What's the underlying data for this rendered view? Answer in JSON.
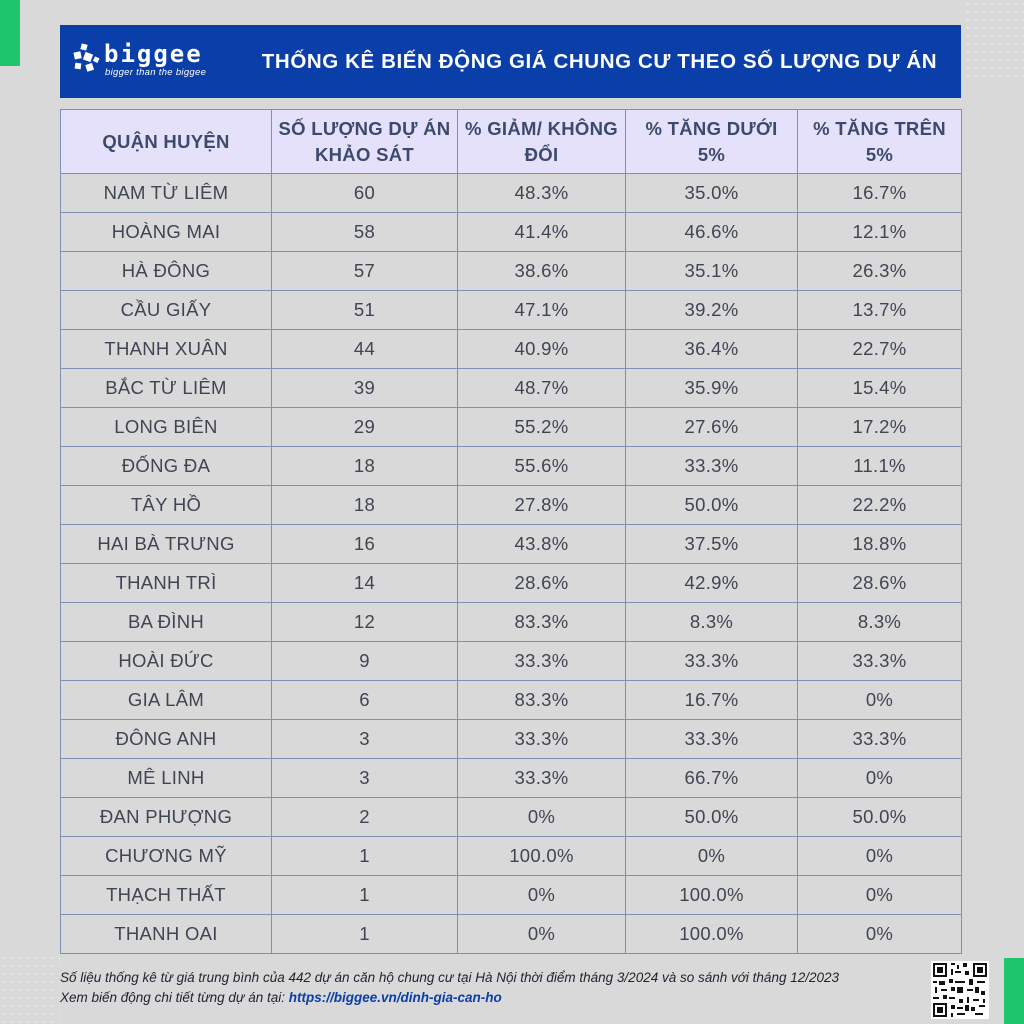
{
  "brand": {
    "name": "biggee",
    "tagline": "bigger than the biggee",
    "logo_icon": "biggee-logo-icon",
    "colors": {
      "header_bg": "#0a3ea8",
      "accent": "#1ec66b",
      "table_header_bg": "#e6e1fa"
    }
  },
  "title": "THỐNG KÊ BIẾN ĐỘNG GIÁ CHUNG CƯ THEO SỐ LƯỢNG DỰ ÁN",
  "table": {
    "headers": [
      "QUẬN HUYỆN",
      "SỐ LƯỢNG DỰ ÁN KHẢO SÁT",
      "% GIẢM/ KHÔNG ĐỔI",
      "% TĂNG DƯỚI 5%",
      "% TĂNG TRÊN 5%"
    ],
    "rows": [
      [
        "NAM TỪ LIÊM",
        "60",
        "48.3%",
        "35.0%",
        "16.7%"
      ],
      [
        "HOÀNG MAI",
        "58",
        "41.4%",
        "46.6%",
        "12.1%"
      ],
      [
        "HÀ ĐÔNG",
        "57",
        "38.6%",
        "35.1%",
        "26.3%"
      ],
      [
        "CẦU GIẤY",
        "51",
        "47.1%",
        "39.2%",
        "13.7%"
      ],
      [
        "THANH XUÂN",
        "44",
        "40.9%",
        "36.4%",
        "22.7%"
      ],
      [
        "BẮC TỪ LIÊM",
        "39",
        "48.7%",
        "35.9%",
        "15.4%"
      ],
      [
        "LONG BIÊN",
        "29",
        "55.2%",
        "27.6%",
        "17.2%"
      ],
      [
        "ĐỐNG ĐA",
        "18",
        "55.6%",
        "33.3%",
        "11.1%"
      ],
      [
        "TÂY HỒ",
        "18",
        "27.8%",
        "50.0%",
        "22.2%"
      ],
      [
        "HAI BÀ TRƯNG",
        "16",
        "43.8%",
        "37.5%",
        "18.8%"
      ],
      [
        "THANH TRÌ",
        "14",
        "28.6%",
        "42.9%",
        "28.6%"
      ],
      [
        "BA ĐÌNH",
        "12",
        "83.3%",
        "8.3%",
        "8.3%"
      ],
      [
        "HOÀI ĐỨC",
        "9",
        "33.3%",
        "33.3%",
        "33.3%"
      ],
      [
        "GIA LÂM",
        "6",
        "83.3%",
        "16.7%",
        "0%"
      ],
      [
        "ĐÔNG  ANH",
        "3",
        "33.3%",
        "33.3%",
        "33.3%"
      ],
      [
        "MÊ LINH",
        "3",
        "33.3%",
        "66.7%",
        "0%"
      ],
      [
        "ĐAN PHƯỢNG",
        "2",
        "0%",
        "50.0%",
        "50.0%"
      ],
      [
        "CHƯƠNG MỸ",
        "1",
        "100.0%",
        "0%",
        "0%"
      ],
      [
        "THẠCH THẤT",
        "1",
        "0%",
        "100.0%",
        "0%"
      ],
      [
        "THANH OAI",
        "1",
        "0%",
        "100.0%",
        "0%"
      ]
    ]
  },
  "footer": {
    "note": "Số liệu thống kê từ giá trung bình của 442 dự án căn hộ chung cư tại Hà Nội thời điểm tháng 3/2024 và so sánh với tháng 12/2023",
    "link_prefix": "Xem biến động chi tiết từng dự án tại: ",
    "link_text": "https://biggee.vn/dinh-gia-can-ho",
    "qr_icon": "qr-code-icon"
  }
}
